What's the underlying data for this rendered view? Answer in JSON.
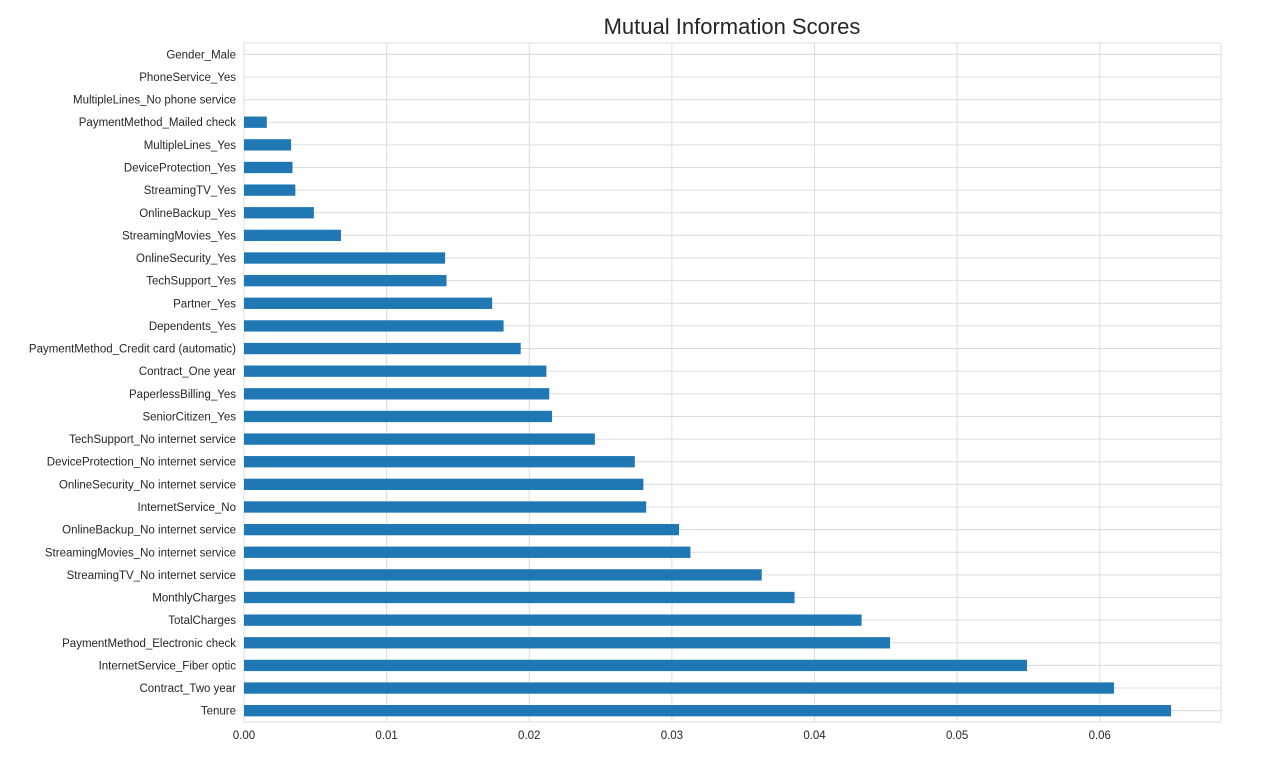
{
  "chart_data": {
    "type": "bar",
    "orientation": "horizontal",
    "title": "Mutual Information Scores",
    "xlabel": "",
    "ylabel": "",
    "xlim": [
      0.0,
      0.0685
    ],
    "grid": true,
    "bar_color": "#1f77b4",
    "x_ticks": [
      "0.00",
      "0.01",
      "0.02",
      "0.03",
      "0.04",
      "0.05",
      "0.06"
    ],
    "x_tick_values": [
      0.0,
      0.01,
      0.02,
      0.03,
      0.04,
      0.05,
      0.06
    ],
    "categories": [
      "Gender_Male",
      "PhoneService_Yes",
      "MultipleLines_No phone service",
      "PaymentMethod_Mailed check",
      "MultipleLines_Yes",
      "DeviceProtection_Yes",
      "StreamingTV_Yes",
      "OnlineBackup_Yes",
      "StreamingMovies_Yes",
      "OnlineSecurity_Yes",
      "TechSupport_Yes",
      "Partner_Yes",
      "Dependents_Yes",
      "PaymentMethod_Credit card (automatic)",
      "Contract_One year",
      "PaperlessBilling_Yes",
      "SeniorCitizen_Yes",
      "TechSupport_No internet service",
      "DeviceProtection_No internet service",
      "OnlineSecurity_No internet service",
      "InternetService_No",
      "OnlineBackup_No internet service",
      "StreamingMovies_No internet service",
      "StreamingTV_No internet service",
      "MonthlyCharges",
      "TotalCharges",
      "PaymentMethod_Electronic check",
      "InternetService_Fiber optic",
      "Contract_Two year",
      "Tenure"
    ],
    "values": [
      0.0,
      0.0,
      0.0,
      0.0016,
      0.0033,
      0.0034,
      0.0036,
      0.0049,
      0.0068,
      0.0141,
      0.0142,
      0.0174,
      0.0182,
      0.0194,
      0.0212,
      0.0214,
      0.0216,
      0.0246,
      0.0274,
      0.028,
      0.0282,
      0.0305,
      0.0313,
      0.0363,
      0.0386,
      0.0433,
      0.0453,
      0.0549,
      0.061,
      0.065
    ]
  }
}
